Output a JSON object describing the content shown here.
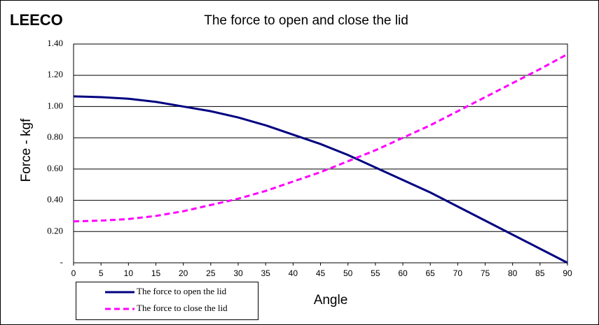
{
  "chart_data": {
    "type": "line",
    "brand": "LEECO",
    "title": "The force to open and close the lid",
    "x_label": "Angle",
    "y_label": "Force - kgf",
    "x": [
      0,
      5,
      10,
      15,
      20,
      25,
      30,
      35,
      40,
      45,
      50,
      55,
      60,
      65,
      70,
      75,
      80,
      85,
      90
    ],
    "xlim": [
      0,
      90
    ],
    "xticks": [
      0,
      5,
      10,
      15,
      20,
      25,
      30,
      35,
      40,
      45,
      50,
      55,
      60,
      65,
      70,
      75,
      80,
      85,
      90
    ],
    "ylim": [
      0,
      1.4
    ],
    "yticks": [
      {
        "value": 0,
        "label": "-"
      },
      {
        "value": 0.2,
        "label": "0.20"
      },
      {
        "value": 0.4,
        "label": "0.40"
      },
      {
        "value": 0.6,
        "label": "0.60"
      },
      {
        "value": 0.8,
        "label": "0.80"
      },
      {
        "value": 1.0,
        "label": "1.00"
      },
      {
        "value": 1.2,
        "label": "1.20"
      },
      {
        "value": 1.4,
        "label": "1.40"
      }
    ],
    "grid": true,
    "series": [
      {
        "name": "The force to open the lid",
        "color": "#000080",
        "style": "solid",
        "values": [
          1.065,
          1.06,
          1.05,
          1.03,
          1.0,
          0.97,
          0.93,
          0.88,
          0.82,
          0.76,
          0.69,
          0.61,
          0.53,
          0.45,
          0.36,
          0.27,
          0.18,
          0.09,
          0.0
        ]
      },
      {
        "name": "The force to close the lid",
        "color": "#ff00ff",
        "style": "dashed",
        "values": [
          0.265,
          0.27,
          0.28,
          0.3,
          0.33,
          0.37,
          0.41,
          0.46,
          0.52,
          0.58,
          0.65,
          0.72,
          0.8,
          0.88,
          0.97,
          1.06,
          1.15,
          1.24,
          1.335
        ]
      }
    ]
  }
}
